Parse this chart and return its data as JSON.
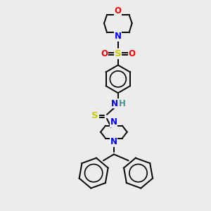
{
  "bg_color": "#ececec",
  "atom_colors": {
    "C": "#000000",
    "N": "#0000ff",
    "O": "#ff0000",
    "S": "#cccc00",
    "H": "#4a9090"
  },
  "figsize": [
    3.0,
    3.0
  ],
  "dpi": 100
}
